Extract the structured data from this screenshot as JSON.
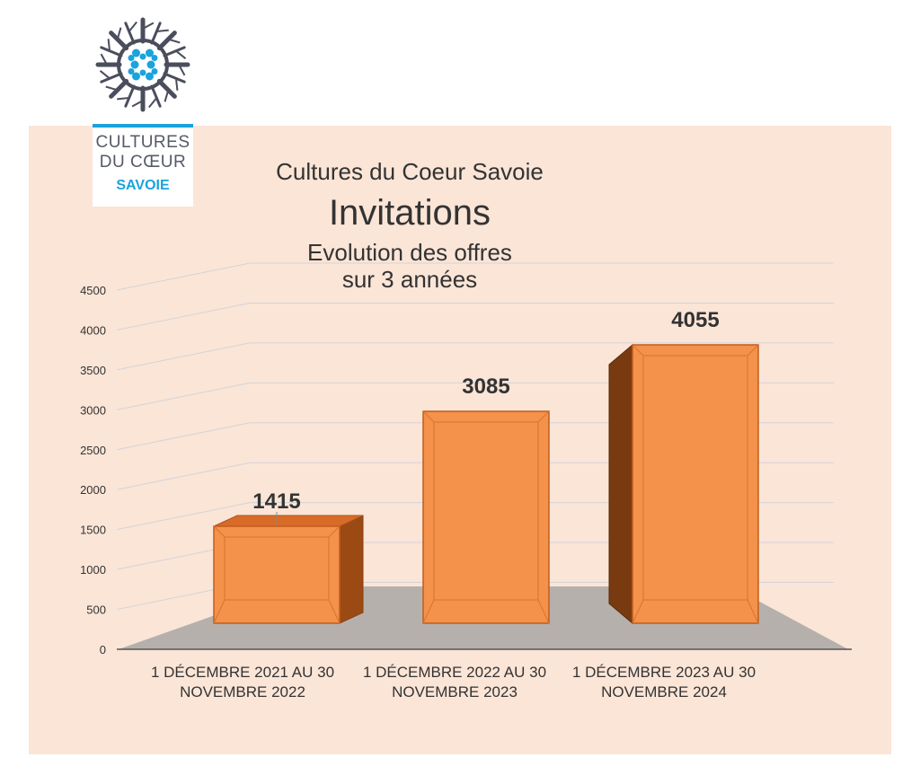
{
  "logo": {
    "line1": "CULTURES",
    "line2": "DU CŒUR",
    "line3": "SAVOIE"
  },
  "title": {
    "line1": "Cultures du Coeur Savoie",
    "line2": "Invitations",
    "line3": "Evolution des offres",
    "line4": "sur 3 années"
  },
  "colors": {
    "panel": "#fbe5d7",
    "bar": "#f4914a",
    "bar_dark": "#7a3a10",
    "floor": "#b5b0ac",
    "accent": "#1aa3dc"
  },
  "chart_data": {
    "type": "bar",
    "style": "3d",
    "categories": [
      [
        "1 DÉCEMBRE 2021 AU 30",
        "NOVEMBRE 2022"
      ],
      [
        "1 DÉCEMBRE 2022 AU 30",
        "NOVEMBRE 2023"
      ],
      [
        "1 DÉCEMBRE 2023 AU 30",
        "NOVEMBRE 2024"
      ]
    ],
    "values": [
      1415,
      3085,
      4055
    ],
    "data_labels": [
      "1415",
      "3085",
      "4055"
    ],
    "ylim": [
      0,
      4500
    ],
    "yticks": [
      0,
      500,
      1000,
      1500,
      2000,
      2500,
      3000,
      3500,
      4000,
      4500
    ],
    "grid": true,
    "legend": false
  }
}
